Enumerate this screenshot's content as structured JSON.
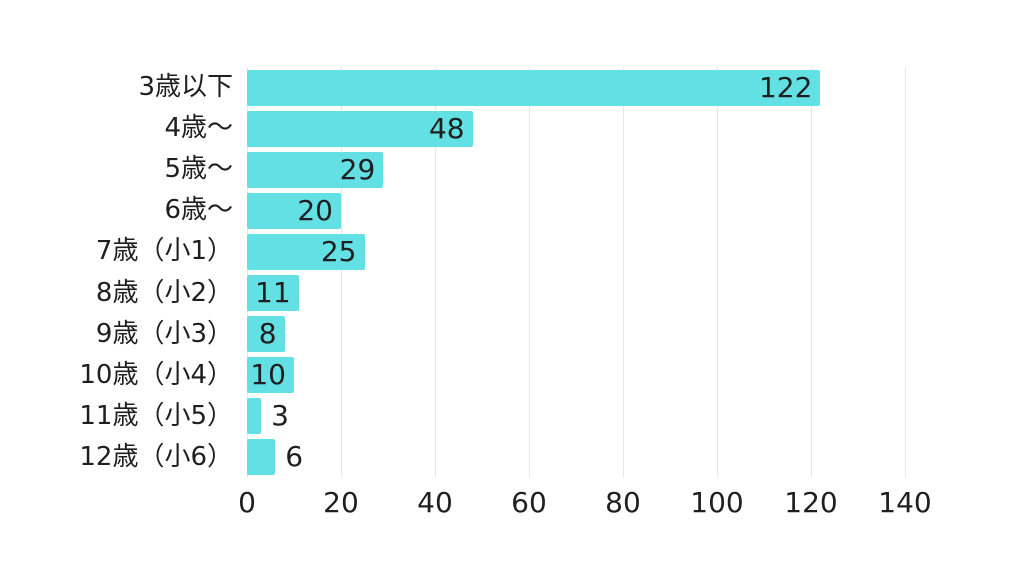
{
  "page": {
    "background": "#ffffff"
  },
  "chart_data": {
    "type": "bar",
    "orientation": "horizontal",
    "title": "",
    "categories": [
      "3歳以下",
      "4歳〜",
      "5歳〜",
      "6歳〜",
      "7歳（小1）",
      "8歳（小2）",
      "9歳（小3）",
      "10歳（小4）",
      "11歳（小5）",
      "12歳（小6）"
    ],
    "values": [
      122,
      48,
      29,
      20,
      25,
      11,
      8,
      10,
      3,
      6
    ],
    "x_ticks": [
      0,
      20,
      40,
      60,
      80,
      100,
      120,
      140
    ],
    "xlim": [
      0,
      140
    ],
    "ylabel": "",
    "xlabel": "",
    "legend": "none",
    "grid": "vertical gridlines at each x tick",
    "value_labels": "inside bar end; outside for bars too small to fit",
    "bar_color": "#63e0e3",
    "text_color": "#1f1f1f",
    "grid_color": "#e7e7e7"
  }
}
